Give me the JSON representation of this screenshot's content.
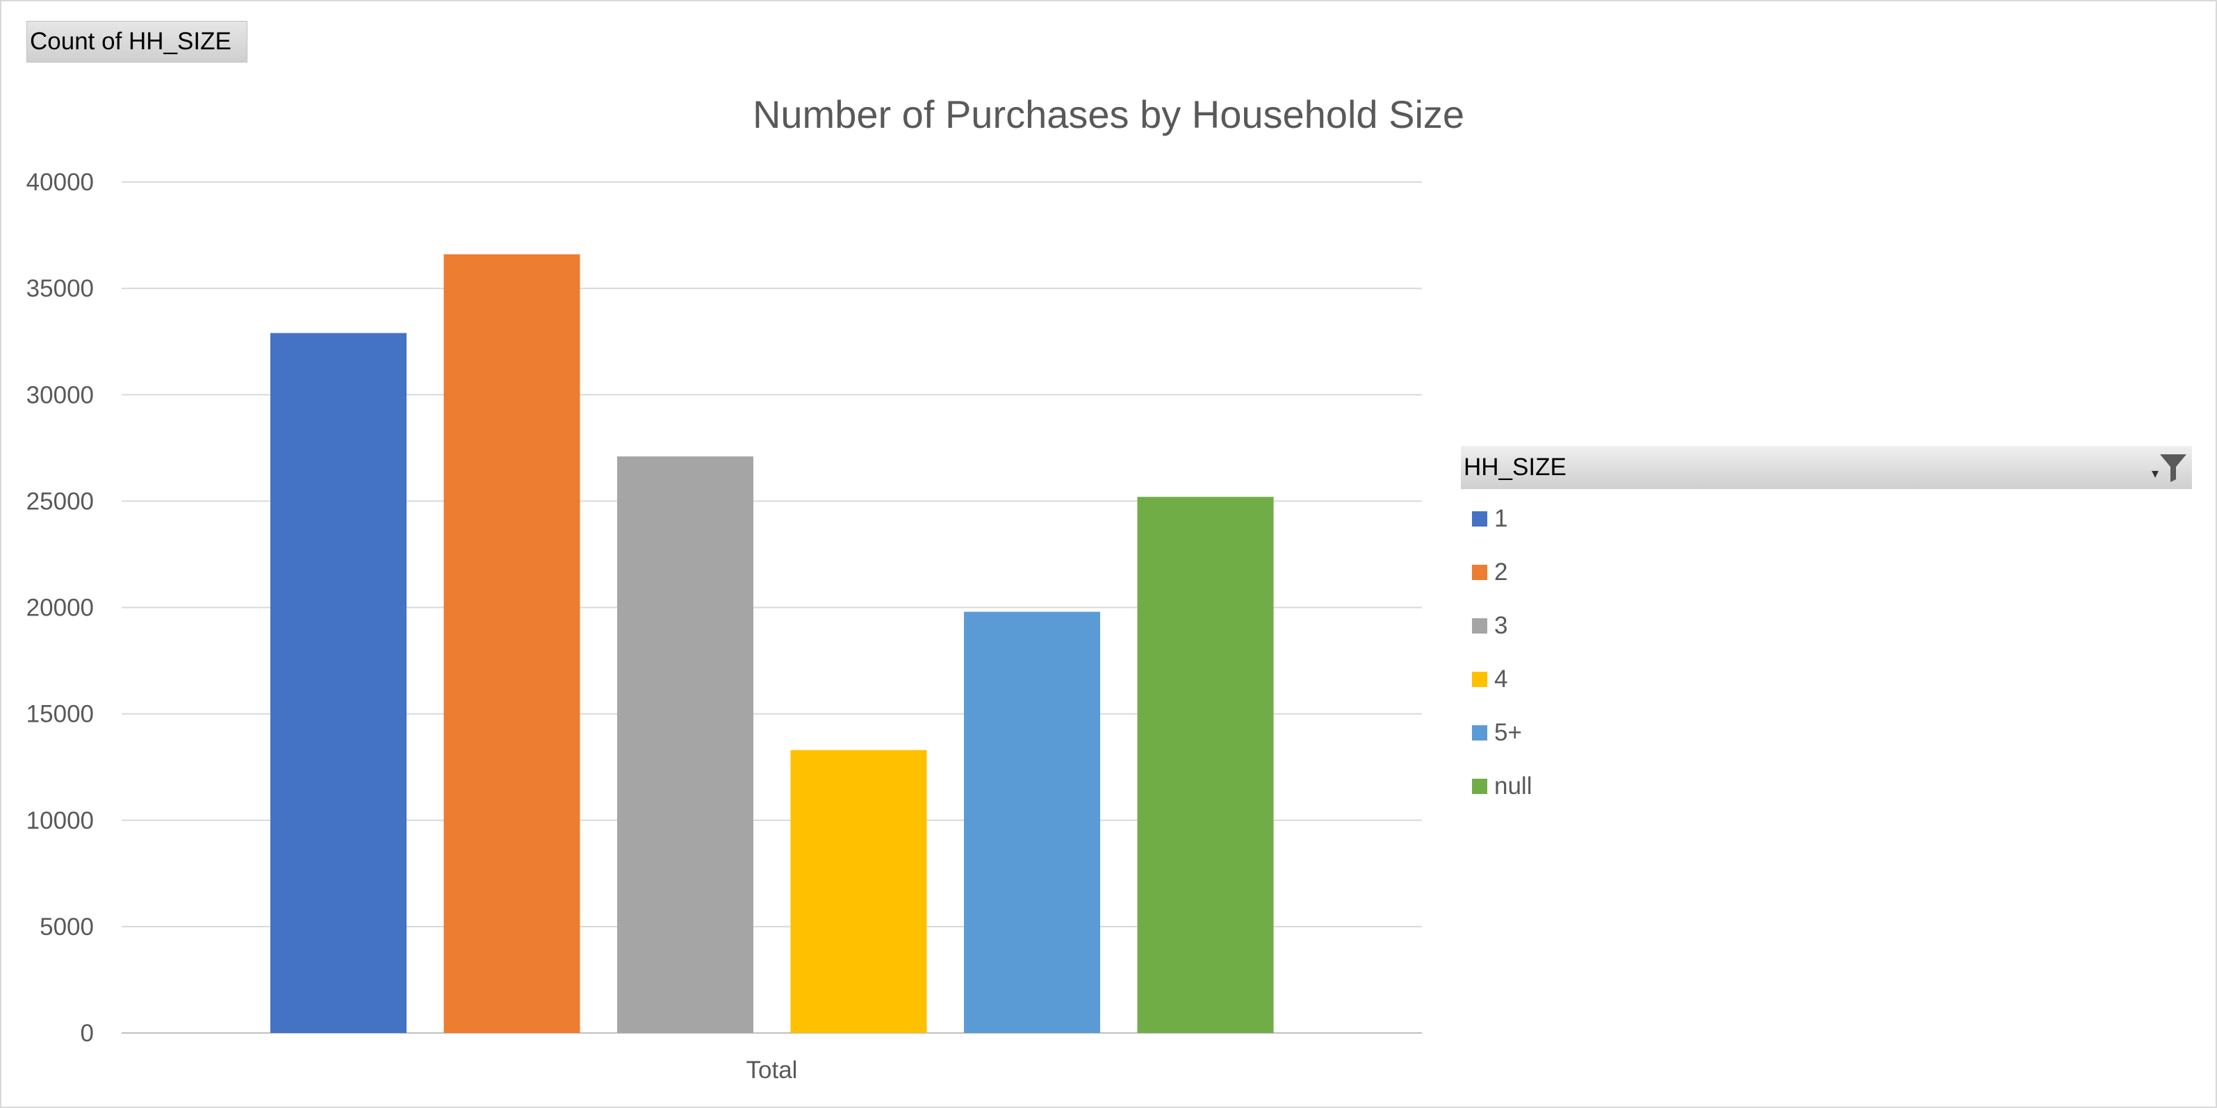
{
  "field_button": {
    "label": "Count of HH_SIZE"
  },
  "chart_data": {
    "type": "bar",
    "title": "Number of Purchases by Household Size",
    "categories": [
      "Total"
    ],
    "series": [
      {
        "name": "1",
        "values": [
          32900
        ],
        "color": "#4472C4"
      },
      {
        "name": "2",
        "values": [
          36600
        ],
        "color": "#ED7D31"
      },
      {
        "name": "3",
        "values": [
          27100
        ],
        "color": "#A5A5A5"
      },
      {
        "name": "4",
        "values": [
          13300
        ],
        "color": "#FFC000"
      },
      {
        "name": "5+",
        "values": [
          19800
        ],
        "color": "#5B9BD5"
      },
      {
        "name": "null",
        "values": [
          25200
        ],
        "color": "#70AD47"
      }
    ],
    "xlabel": "",
    "ylabel": "",
    "ylim": [
      0,
      40000
    ],
    "yticks": [
      0,
      5000,
      10000,
      15000,
      20000,
      25000,
      30000,
      35000,
      40000
    ],
    "grid": true,
    "legend_placement": "right"
  },
  "legend": {
    "header": "HH_SIZE",
    "filter_icon": "filter-icon"
  }
}
